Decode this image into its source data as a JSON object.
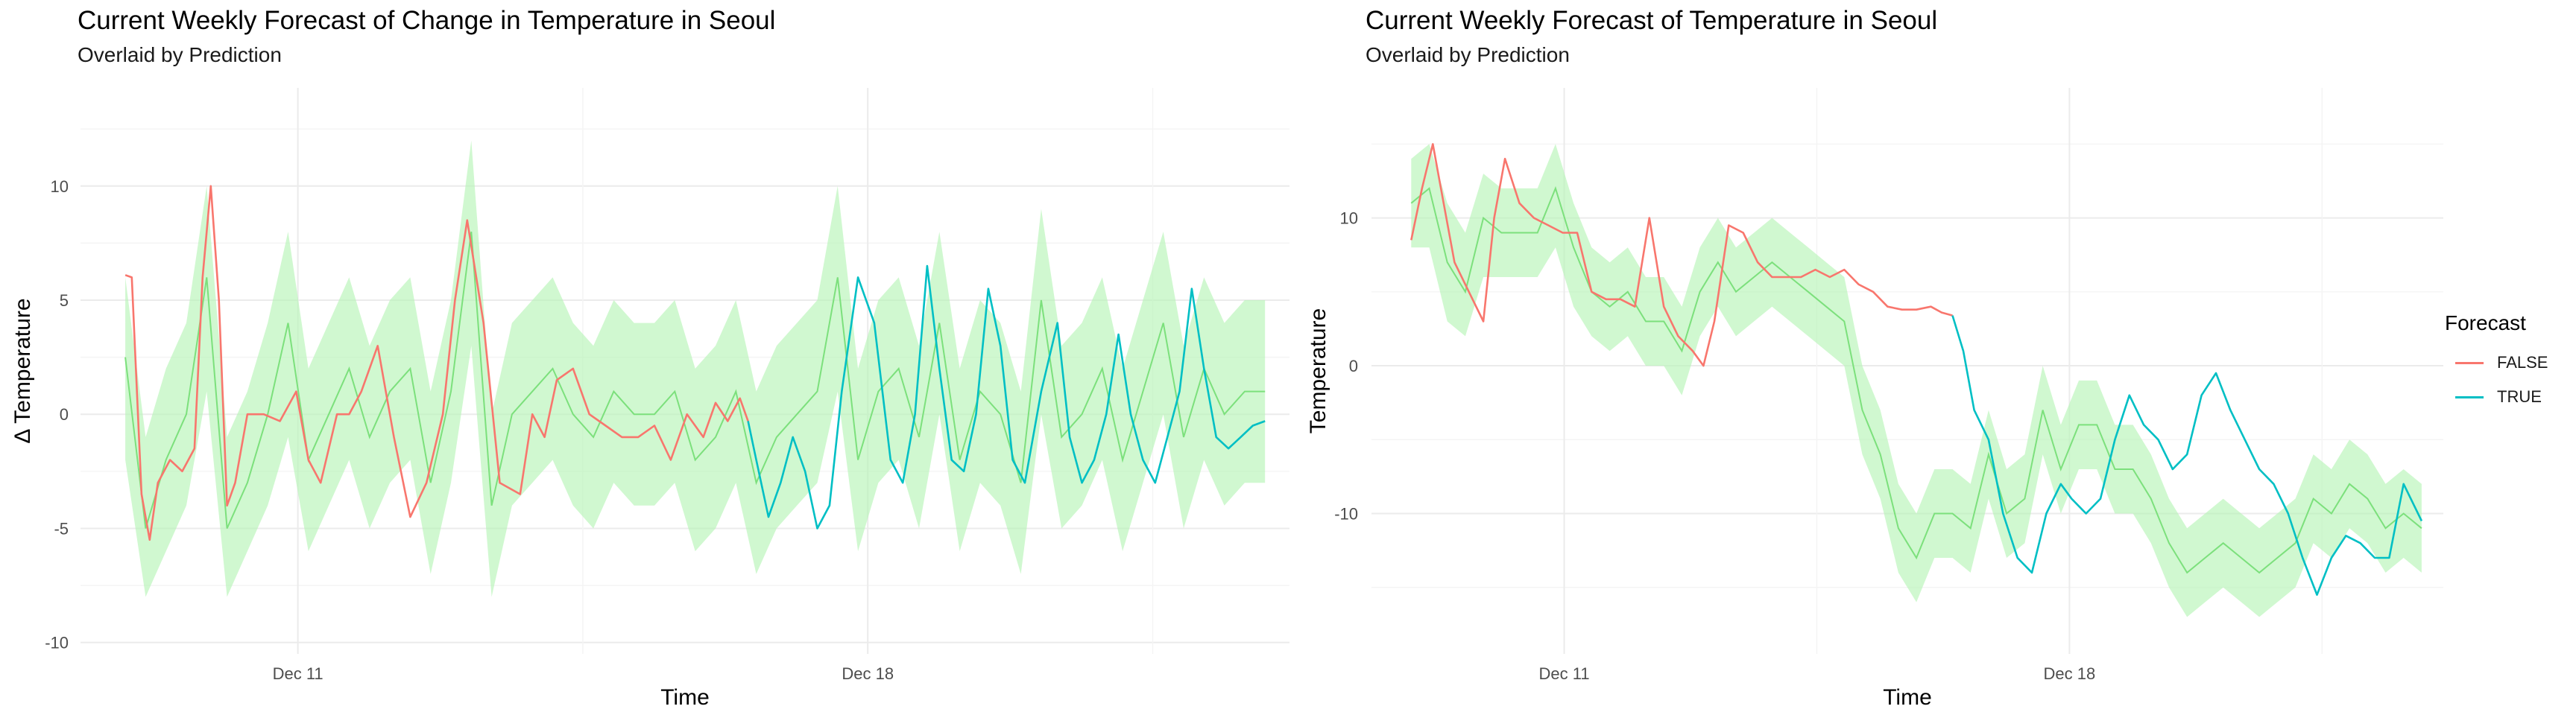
{
  "colors": {
    "FALSE": "#F8766D",
    "TRUE": "#00BFC4",
    "observed_line": "#7CE07C",
    "observed_ribbon": "#B7F5B7"
  },
  "legend": {
    "title": "Forecast",
    "items": [
      {
        "label": "FALSE",
        "color_key": "FALSE"
      },
      {
        "label": "TRUE",
        "color_key": "TRUE"
      }
    ]
  },
  "chart_data": [
    {
      "type": "line",
      "title": "Current Weekly Forecast of Change in Temperature in Seoul",
      "subtitle": "Overlaid by Prediction",
      "xlabel": "Time",
      "ylabel": "Δ Temperature",
      "x_ticks": [
        {
          "value": 2.12,
          "label": "Dec 11"
        },
        {
          "value": 9.12,
          "label": "Dec 18"
        }
      ],
      "y_ticks": [
        -10,
        -5,
        0,
        5,
        10
      ],
      "xlim": [
        -0.55,
        14.3
      ],
      "ylim": [
        -10.5,
        14.3
      ],
      "grid": true,
      "observed": {
        "x": [
          0,
          0.25,
          0.5,
          0.75,
          1,
          1.25,
          1.5,
          1.75,
          2,
          2.25,
          2.5,
          2.75,
          3,
          3.25,
          3.5,
          3.75,
          4,
          4.25,
          4.5,
          4.75,
          5,
          5.25,
          5.5,
          5.75,
          6,
          6.25,
          6.5,
          6.75,
          7,
          7.25,
          7.5,
          7.75,
          8,
          8.25,
          8.5,
          8.75,
          9,
          9.25,
          9.5,
          9.75,
          10,
          10.25,
          10.5,
          10.75,
          11,
          11.25,
          11.5,
          11.75,
          12,
          12.25,
          12.5,
          12.75,
          13,
          13.25,
          13.5,
          13.75,
          14
        ],
        "y": [
          2.5,
          -5,
          -2,
          0,
          6,
          -5,
          -3,
          0,
          4,
          -2,
          0,
          2,
          -1,
          1,
          2,
          -3,
          1,
          8,
          -4,
          0,
          1,
          2,
          0,
          -1,
          1,
          0,
          0,
          1,
          -2,
          -1,
          1,
          -3,
          -1,
          0,
          1,
          6,
          -2,
          1,
          2,
          -1,
          4,
          -2,
          1,
          0,
          -3,
          5,
          -1,
          0,
          2,
          -2,
          1,
          4,
          -1,
          2,
          0,
          1,
          1
        ],
        "lower": [
          -2,
          -8,
          -6,
          -4,
          1,
          -8,
          -6,
          -4,
          -1,
          -6,
          -4,
          -2,
          -5,
          -3,
          -2,
          -7,
          -3,
          3,
          -8,
          -4,
          -3,
          -2,
          -4,
          -5,
          -3,
          -4,
          -4,
          -3,
          -6,
          -5,
          -3,
          -7,
          -5,
          -4,
          -3,
          1,
          -6,
          -3,
          -2,
          -5,
          0,
          -6,
          -3,
          -4,
          -7,
          0,
          -5,
          -4,
          -2,
          -6,
          -3,
          0,
          -5,
          -2,
          -4,
          -3,
          -3
        ],
        "upper": [
          6,
          -1,
          2,
          4,
          10,
          -1,
          1,
          4,
          8,
          2,
          4,
          6,
          3,
          5,
          6,
          1,
          5,
          12,
          0,
          4,
          5,
          6,
          4,
          3,
          5,
          4,
          4,
          5,
          2,
          3,
          5,
          1,
          3,
          4,
          5,
          10,
          2,
          5,
          6,
          3,
          8,
          2,
          5,
          4,
          1,
          9,
          3,
          4,
          6,
          2,
          5,
          8,
          3,
          6,
          4,
          5,
          5
        ]
      },
      "series": [
        {
          "name": "FALSE",
          "x": [
            0,
            0.08,
            0.2,
            0.3,
            0.4,
            0.55,
            0.7,
            0.85,
            0.95,
            1.05,
            1.15,
            1.25,
            1.35,
            1.5,
            1.7,
            1.9,
            2.1,
            2.25,
            2.4,
            2.6,
            2.75,
            2.9,
            3.1,
            3.3,
            3.5,
            3.7,
            3.9,
            4.05,
            4.2,
            4.4,
            4.6,
            4.85,
            5.0,
            5.15,
            5.3,
            5.5,
            5.7,
            5.9,
            6.1,
            6.3,
            6.5,
            6.7,
            6.9,
            7.1,
            7.25,
            7.4,
            7.55,
            7.65
          ],
          "y": [
            6.1,
            6.0,
            -3.5,
            -5.5,
            -3,
            -2,
            -2.5,
            -1.5,
            6,
            10,
            5,
            -4,
            -3,
            0,
            0,
            -0.3,
            1,
            -2,
            -3,
            0,
            0,
            1,
            3,
            -1,
            -4.5,
            -3,
            0,
            5,
            8.5,
            4,
            -3,
            -3.5,
            0,
            -1,
            1.5,
            2,
            0,
            -0.5,
            -1,
            -1,
            -0.5,
            -2,
            0,
            -1,
            0.5,
            -0.3,
            0.7,
            -0.3
          ]
        },
        {
          "name": "TRUE",
          "x": [
            7.65,
            7.75,
            7.9,
            8.05,
            8.2,
            8.35,
            8.5,
            8.65,
            8.8,
            9.0,
            9.2,
            9.4,
            9.55,
            9.7,
            9.85,
            10.0,
            10.15,
            10.3,
            10.45,
            10.6,
            10.75,
            10.9,
            11.05,
            11.25,
            11.45,
            11.6,
            11.75,
            11.9,
            12.05,
            12.2,
            12.35,
            12.5,
            12.65,
            12.8,
            12.95,
            13.1,
            13.25,
            13.4,
            13.55,
            13.7,
            13.85,
            14.0
          ],
          "y": [
            -0.3,
            -2,
            -4.5,
            -3,
            -1,
            -2.5,
            -5,
            -4,
            1,
            6,
            4,
            -2,
            -3,
            0,
            6.5,
            2,
            -2,
            -2.5,
            0,
            5.5,
            3,
            -2,
            -3,
            1,
            4,
            -1,
            -3,
            -2,
            0,
            3.5,
            0,
            -2,
            -3,
            -1,
            1,
            5.5,
            2,
            -1,
            -1.5,
            -1,
            -0.5,
            -0.3
          ]
        }
      ]
    },
    {
      "type": "line",
      "title": "Current Weekly Forecast of Temperature in Seoul",
      "subtitle": "Overlaid by Prediction",
      "xlabel": "Time",
      "ylabel": "Temperature",
      "x_ticks": [
        {
          "value": 2.12,
          "label": "Dec 11"
        },
        {
          "value": 9.12,
          "label": "Dec 18"
        }
      ],
      "y_ticks": [
        -10,
        0,
        10
      ],
      "xlim": [
        -0.55,
        14.3
      ],
      "ylim": [
        -19.5,
        18.8
      ],
      "grid": true,
      "observed": {
        "x": [
          0,
          0.25,
          0.5,
          0.75,
          1,
          1.25,
          1.5,
          1.75,
          2,
          2.25,
          2.5,
          2.75,
          3,
          3.25,
          3.5,
          3.75,
          4,
          4.25,
          4.5,
          4.75,
          5,
          5.25,
          5.5,
          5.75,
          6,
          6.25,
          6.5,
          6.75,
          7,
          7.25,
          7.5,
          7.75,
          8,
          8.25,
          8.5,
          8.75,
          9,
          9.25,
          9.5,
          9.75,
          10,
          10.25,
          10.5,
          10.75,
          11,
          11.25,
          11.5,
          11.75,
          12,
          12.25,
          12.5,
          12.75,
          13,
          13.25,
          13.5,
          13.75,
          14
        ],
        "y": [
          11,
          12,
          7,
          5,
          10,
          9,
          9,
          9,
          12,
          8,
          5,
          4,
          5,
          3,
          3,
          1,
          5,
          7,
          5,
          6,
          7,
          6,
          5,
          4,
          3,
          -3,
          -6,
          -11,
          -13,
          -10,
          -10,
          -11,
          -6,
          -10,
          -9,
          -3,
          -7,
          -4,
          -4,
          -7,
          -7,
          -9,
          -12,
          -14,
          -13,
          -12,
          -13,
          -14,
          -13,
          -12,
          -9,
          -10,
          -8,
          -9,
          -11,
          -10,
          -11
        ],
        "lower": [
          8,
          8,
          3,
          2,
          6,
          6,
          6,
          6,
          8,
          4,
          2,
          1,
          2,
          0,
          0,
          -2,
          2,
          4,
          2,
          3,
          4,
          3,
          2,
          1,
          0,
          -6,
          -9,
          -14,
          -16,
          -13,
          -13,
          -14,
          -9,
          -13,
          -12,
          -6,
          -10,
          -7,
          -7,
          -10,
          -10,
          -12,
          -15,
          -17,
          -16,
          -15,
          -16,
          -17,
          -16,
          -15,
          -12,
          -13,
          -11,
          -12,
          -14,
          -13,
          -14
        ],
        "upper": [
          14,
          15,
          11,
          9,
          13,
          12,
          12,
          12,
          15,
          11,
          8,
          7,
          8,
          6,
          6,
          4,
          8,
          10,
          8,
          9,
          10,
          9,
          8,
          7,
          6,
          0,
          -3,
          -8,
          -10,
          -7,
          -7,
          -8,
          -3,
          -7,
          -6,
          0,
          -4,
          -1,
          -1,
          -4,
          -4,
          -6,
          -9,
          -11,
          -10,
          -9,
          -10,
          -11,
          -10,
          -9,
          -6,
          -7,
          -5,
          -6,
          -8,
          -7,
          -8
        ]
      },
      "series": [
        {
          "name": "FALSE",
          "x": [
            0,
            0.15,
            0.3,
            0.45,
            0.6,
            0.8,
            1.0,
            1.15,
            1.3,
            1.5,
            1.7,
            1.9,
            2.1,
            2.3,
            2.5,
            2.7,
            2.9,
            3.1,
            3.3,
            3.5,
            3.7,
            3.9,
            4.05,
            4.2,
            4.4,
            4.6,
            4.8,
            5.0,
            5.2,
            5.4,
            5.6,
            5.8,
            6.0,
            6.2,
            6.4,
            6.6,
            6.8,
            7.0,
            7.2,
            7.35,
            7.5
          ],
          "y": [
            8.5,
            12,
            15,
            11,
            7,
            5,
            3,
            10,
            14,
            11,
            10,
            9.5,
            9,
            9,
            5,
            4.5,
            4.5,
            4,
            10,
            4,
            2,
            1,
            0,
            3,
            9.5,
            9,
            7,
            6,
            6,
            6,
            6.5,
            6,
            6.5,
            5.5,
            5,
            4,
            3.8,
            3.8,
            4,
            3.6,
            3.4
          ]
        },
        {
          "name": "TRUE",
          "x": [
            7.5,
            7.65,
            7.8,
            8.0,
            8.2,
            8.4,
            8.6,
            8.8,
            9.0,
            9.15,
            9.35,
            9.55,
            9.75,
            9.95,
            10.15,
            10.35,
            10.55,
            10.75,
            10.95,
            11.15,
            11.35,
            11.55,
            11.75,
            11.95,
            12.15,
            12.35,
            12.55,
            12.75,
            12.95,
            13.15,
            13.35,
            13.55,
            13.75,
            14.0
          ],
          "y": [
            3.4,
            1,
            -3,
            -5,
            -10,
            -13,
            -14,
            -10,
            -8,
            -9,
            -10,
            -9,
            -5,
            -2,
            -4,
            -5,
            -7,
            -6,
            -2,
            -0.5,
            -3,
            -5,
            -7,
            -8,
            -10,
            -13,
            -15.5,
            -13,
            -11.5,
            -12,
            -13,
            -13,
            -8,
            -10.5
          ]
        }
      ]
    }
  ]
}
